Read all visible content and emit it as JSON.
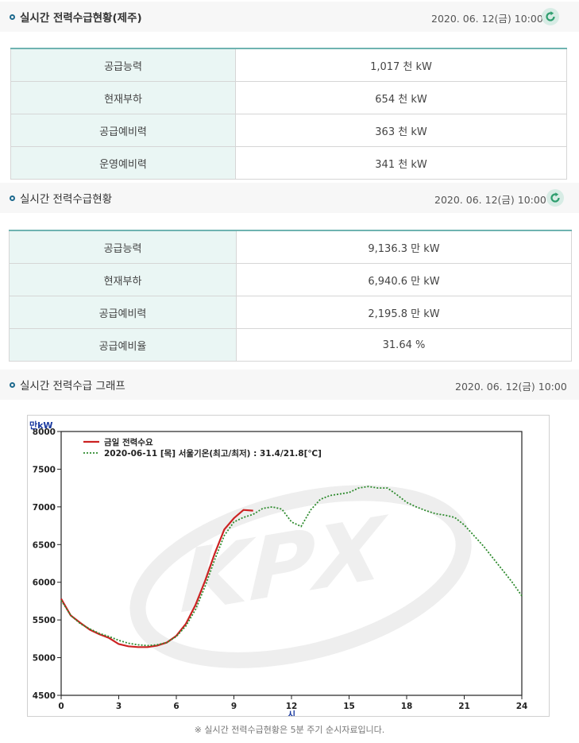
{
  "jeju": {
    "title": "실시간 전력수급현황(제주)",
    "timestamp": "2020. 06. 12(금) 10:00",
    "rows": [
      {
        "label": "공급능력",
        "value": "1,017 천 kW"
      },
      {
        "label": "현재부하",
        "value": "654 천 kW"
      },
      {
        "label": "공급예비력",
        "value": "363 천 kW"
      },
      {
        "label": "운영예비력",
        "value": "341 천 kW"
      }
    ]
  },
  "national": {
    "title": "실시간 전력수급현황",
    "timestamp": "2020. 06. 12(금) 10:00",
    "rows": [
      {
        "label": "공급능력",
        "value": "9,136.3 만 kW"
      },
      {
        "label": "현재부하",
        "value": "6,940.6 만 kW"
      },
      {
        "label": "공급예비력",
        "value": "2,195.8 만 kW"
      },
      {
        "label": "공급예비율",
        "value": "31.64 %"
      }
    ]
  },
  "graph": {
    "title": "실시간 전력수급 그래프",
    "timestamp": "2020. 06. 12(금) 10:00",
    "note": "※ 실시간 전력수급현황은 5분 주기 순시자료입니다."
  },
  "colors": {
    "today": "#cc2222",
    "yesterday": "#2e8b2e",
    "accent": "#6fb3b1"
  },
  "chart_data": {
    "type": "line",
    "ylabel": "만kW",
    "xlabel": "시",
    "watermark": "KPX",
    "xlim": [
      0,
      24
    ],
    "ylim": [
      4500,
      8000
    ],
    "xticks": [
      0,
      3,
      6,
      9,
      12,
      15,
      18,
      21,
      24
    ],
    "yticks": [
      4500,
      5000,
      5500,
      6000,
      6500,
      7000,
      7500,
      8000
    ],
    "grid": false,
    "legend": "top-left",
    "series": [
      {
        "name": "금일 전력수요",
        "style": "solid",
        "x": [
          0,
          0.5,
          1,
          1.5,
          2,
          2.5,
          3,
          3.5,
          4,
          4.5,
          5,
          5.5,
          6,
          6.5,
          7,
          7.5,
          8,
          8.5,
          9,
          9.5,
          10
        ],
        "y": [
          5780,
          5560,
          5460,
          5370,
          5310,
          5260,
          5180,
          5150,
          5140,
          5140,
          5160,
          5200,
          5290,
          5450,
          5700,
          6020,
          6380,
          6700,
          6850,
          6960,
          6950
        ]
      },
      {
        "name": "2020-06-11 [목] 서울기온(최고/최저) : 31.4/21.8[℃]",
        "style": "dotted",
        "x": [
          0,
          0.5,
          1,
          1.5,
          2,
          2.5,
          3,
          3.5,
          4,
          4.5,
          5,
          5.5,
          6,
          6.5,
          7,
          7.5,
          8,
          8.5,
          9,
          9.5,
          10,
          10.5,
          11,
          11.5,
          12,
          12.5,
          13,
          13.5,
          14,
          14.5,
          15,
          15.5,
          16,
          16.5,
          17,
          17.5,
          18,
          18.5,
          19,
          19.5,
          20,
          20.5,
          21,
          21.5,
          22,
          22.5,
          23,
          23.5,
          24
        ],
        "y": [
          5760,
          5560,
          5450,
          5380,
          5320,
          5280,
          5230,
          5190,
          5170,
          5160,
          5170,
          5200,
          5280,
          5420,
          5640,
          5950,
          6300,
          6620,
          6800,
          6860,
          6900,
          6980,
          7000,
          6970,
          6800,
          6740,
          6960,
          7100,
          7150,
          7170,
          7190,
          7250,
          7270,
          7250,
          7250,
          7160,
          7060,
          7000,
          6950,
          6910,
          6890,
          6860,
          6760,
          6620,
          6480,
          6320,
          6160,
          6000,
          5820
        ]
      }
    ]
  }
}
